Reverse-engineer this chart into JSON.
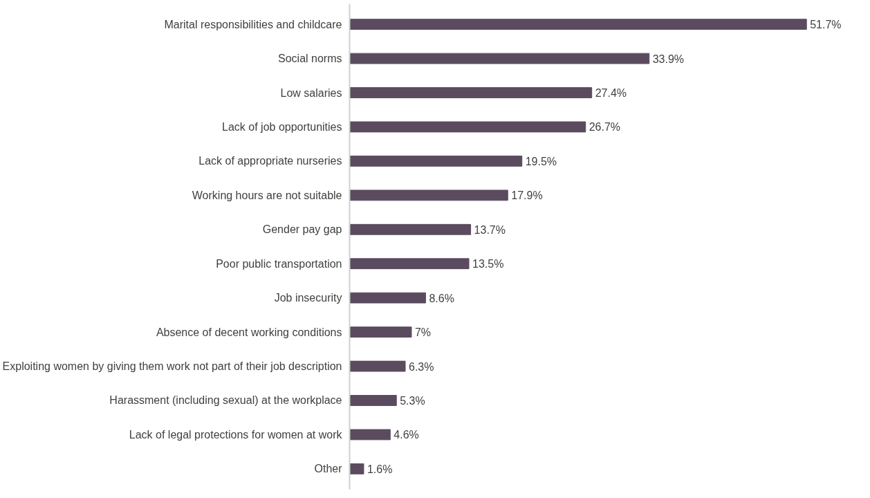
{
  "chart_data": {
    "type": "bar",
    "orientation": "horizontal",
    "categories": [
      "Marital responsibilities and childcare",
      "Social norms",
      "Low salaries",
      "Lack of job opportunities",
      "Lack of appropriate nurseries",
      "Working hours are not suitable",
      "Gender pay gap",
      "Poor public transportation",
      "Job insecurity",
      "Absence of decent working conditions",
      "Exploiting women by giving them work not part of their job description",
      "Harassment (including sexual) at the workplace",
      "Lack of legal protections for women at work",
      "Other"
    ],
    "values": [
      51.7,
      33.9,
      27.4,
      26.7,
      19.5,
      17.9,
      13.7,
      13.5,
      8.6,
      7,
      6.3,
      5.3,
      4.6,
      1.6
    ],
    "value_labels": [
      "51.7%",
      "33.9%",
      "27.4%",
      "26.7%",
      "19.5%",
      "17.9%",
      "13.7%",
      "13.5%",
      "8.6%",
      "7%",
      "6.3%",
      "5.3%",
      "4.6%",
      "1.6%"
    ],
    "color": "#5b4b5f",
    "grid": false,
    "tick_labels": "y"
  }
}
